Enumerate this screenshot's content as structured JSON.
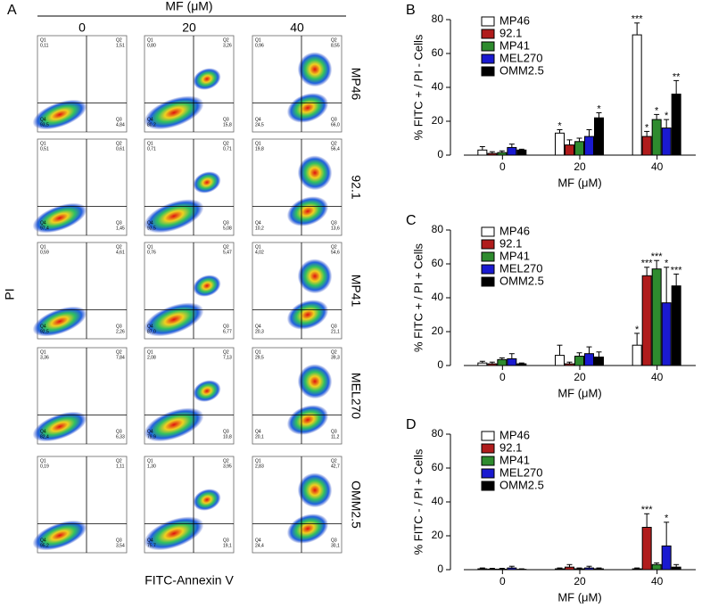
{
  "flow_panel": {
    "panel_label": "A",
    "title": "MF (μM)",
    "columns": [
      "0",
      "20",
      "40"
    ],
    "rows": [
      "MP46",
      "92.1",
      "MP41",
      "MEL270",
      "OMM2.5"
    ],
    "y_label": "PI",
    "x_label": "FITC-Annexin V",
    "quadrant_names": [
      "Q1",
      "Q2",
      "Q3",
      "Q4"
    ],
    "plots": [
      [
        [
          "0,11",
          "1,51",
          "4,84",
          "93,5"
        ],
        [
          "0,80",
          "3,26",
          "15,8",
          "80,2"
        ],
        [
          "0,96",
          "8,55",
          "66,0",
          "24,5"
        ]
      ],
      [
        [
          "0,51",
          "0,61",
          "1,45",
          "97,4"
        ],
        [
          "0,71",
          "0,71",
          "5,08",
          "93,5"
        ],
        [
          "19,8",
          "56,4",
          "13,6",
          "10,2"
        ]
      ],
      [
        [
          "0,59",
          "4,61",
          "2,26",
          "92,5"
        ],
        [
          "0,76",
          "5,47",
          "6,77",
          "87,0"
        ],
        [
          "4,02",
          "54,6",
          "21,1",
          "20,3"
        ]
      ],
      [
        [
          "3,36",
          "7,84",
          "6,33",
          "82,4"
        ],
        [
          "2,08",
          "7,13",
          "10,8",
          "79,9"
        ],
        [
          "29,5",
          "39,3",
          "11,2",
          "20,1"
        ]
      ],
      [
        [
          "0,19",
          "1,11",
          "3,54",
          "95,2"
        ],
        [
          "1,30",
          "3,95",
          "19,1",
          "75,7"
        ],
        [
          "2,83",
          "42,7",
          "30,1",
          "24,4"
        ]
      ]
    ]
  },
  "chart_data": [
    {
      "type": "bar",
      "panel_label": "B",
      "y_label": "% FITC + / PI - Cells",
      "x_label": "MF (μM)",
      "categories": [
        "0",
        "20",
        "40"
      ],
      "ylim": [
        0,
        80
      ],
      "yticks": [
        0,
        20,
        40,
        60,
        80
      ],
      "series": [
        {
          "name": "MP46",
          "color": "#ffffff",
          "values": [
            3,
            13,
            71
          ],
          "errors": [
            2,
            2,
            7
          ],
          "stars": [
            null,
            "*",
            "***"
          ]
        },
        {
          "name": "92.1",
          "color": "#b01c1c",
          "values": [
            1,
            6,
            11
          ],
          "errors": [
            1,
            3,
            3
          ],
          "stars": [
            null,
            null,
            "*"
          ]
        },
        {
          "name": "MP41",
          "color": "#2e8b2e",
          "values": [
            1.5,
            8,
            21
          ],
          "errors": [
            1,
            2,
            3
          ],
          "stars": [
            null,
            null,
            "*"
          ]
        },
        {
          "name": "MEL270",
          "color": "#1a1ad0",
          "values": [
            4.5,
            11,
            16
          ],
          "errors": [
            2,
            4,
            5
          ],
          "stars": [
            null,
            null,
            "*"
          ]
        },
        {
          "name": "OMM2.5",
          "color": "#000000",
          "values": [
            3,
            22,
            36
          ],
          "errors": [
            0.5,
            3,
            8
          ],
          "stars": [
            null,
            "*",
            "**"
          ]
        }
      ]
    },
    {
      "type": "bar",
      "panel_label": "C",
      "y_label": "% FITC + / PI + Cells",
      "x_label": "MF (μM)",
      "categories": [
        "0",
        "20",
        "40"
      ],
      "ylim": [
        0,
        80
      ],
      "yticks": [
        0,
        20,
        40,
        60,
        80
      ],
      "series": [
        {
          "name": "MP46",
          "color": "#ffffff",
          "values": [
            1.5,
            6,
            12
          ],
          "errors": [
            1,
            6,
            7
          ],
          "stars": [
            null,
            null,
            "*"
          ]
        },
        {
          "name": "92.1",
          "color": "#b01c1c",
          "values": [
            1,
            1,
            53
          ],
          "errors": [
            1,
            1,
            5
          ],
          "stars": [
            null,
            null,
            "***"
          ]
        },
        {
          "name": "MP41",
          "color": "#2e8b2e",
          "values": [
            3.5,
            5.5,
            57
          ],
          "errors": [
            1,
            2,
            5
          ],
          "stars": [
            null,
            null,
            "***"
          ]
        },
        {
          "name": "MEL270",
          "color": "#1a1ad0",
          "values": [
            4,
            7,
            37
          ],
          "errors": [
            3,
            4,
            21
          ],
          "stars": [
            null,
            null,
            "*"
          ]
        },
        {
          "name": "OMM2.5",
          "color": "#000000",
          "values": [
            1,
            5,
            47
          ],
          "errors": [
            0.5,
            3,
            7
          ],
          "stars": [
            null,
            null,
            "***"
          ]
        }
      ]
    },
    {
      "type": "bar",
      "panel_label": "D",
      "y_label": "% FITC - / PI + Cells",
      "x_label": "MF (μM)",
      "categories": [
        "0",
        "20",
        "40"
      ],
      "ylim": [
        0,
        80
      ],
      "yticks": [
        0,
        20,
        40,
        60,
        80
      ],
      "series": [
        {
          "name": "MP46",
          "color": "#ffffff",
          "values": [
            0.5,
            0.5,
            0.5
          ],
          "errors": [
            0.5,
            0.5,
            0.5
          ],
          "stars": [
            null,
            null,
            null
          ]
        },
        {
          "name": "92.1",
          "color": "#b01c1c",
          "values": [
            0.3,
            1.5,
            25
          ],
          "errors": [
            0.5,
            1.5,
            8
          ],
          "stars": [
            null,
            null,
            "***"
          ]
        },
        {
          "name": "MP41",
          "color": "#2e8b2e",
          "values": [
            0.3,
            0.5,
            3
          ],
          "errors": [
            0.5,
            0.5,
            1
          ],
          "stars": [
            null,
            null,
            null
          ]
        },
        {
          "name": "MEL270",
          "color": "#1a1ad0",
          "values": [
            1,
            1,
            14
          ],
          "errors": [
            1,
            1,
            14
          ],
          "stars": [
            null,
            null,
            "*"
          ]
        },
        {
          "name": "OMM2.5",
          "color": "#000000",
          "values": [
            0.2,
            0.5,
            1.5
          ],
          "errors": [
            0.3,
            0.5,
            1.5
          ],
          "stars": [
            null,
            null,
            null
          ]
        }
      ]
    }
  ]
}
